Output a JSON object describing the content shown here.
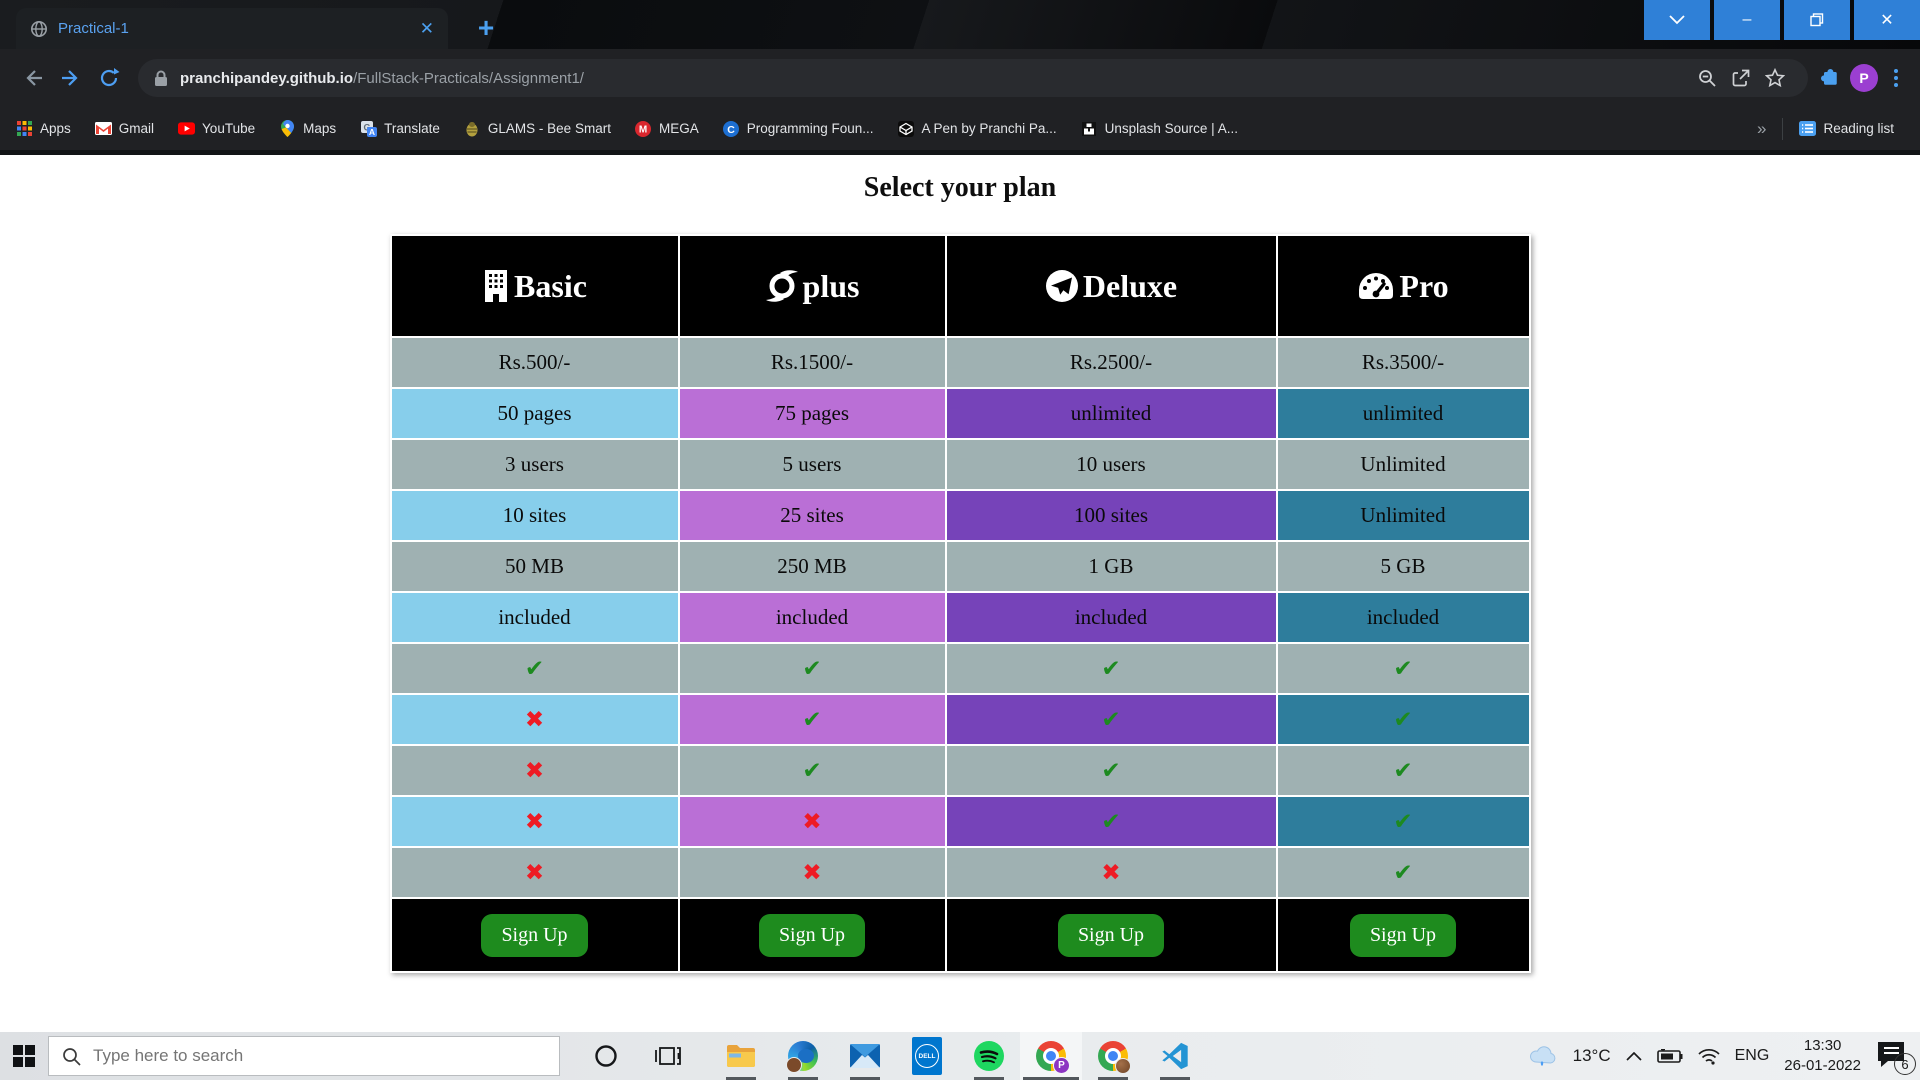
{
  "browser": {
    "tab_title": "Practical-1",
    "icons": {
      "tab_close": "✕",
      "new_tab": "+",
      "overflow": "»",
      "win_minimize": "–",
      "win_close": "✕"
    },
    "url_domain": "pranchipandey.github.io",
    "url_path": "/FullStack-Practicals/Assignment1/",
    "profile_initial": "P",
    "bookmarks": [
      {
        "label": "Apps",
        "icon": "apps-grid-icon"
      },
      {
        "label": "Gmail",
        "icon": "gmail-icon"
      },
      {
        "label": "YouTube",
        "icon": "youtube-icon"
      },
      {
        "label": "Maps",
        "icon": "maps-pin-icon"
      },
      {
        "label": "Translate",
        "icon": "translate-icon"
      },
      {
        "label": "GLAMS - Bee Smart",
        "icon": "bee-icon"
      },
      {
        "label": "MEGA",
        "icon": "mega-icon"
      },
      {
        "label": "Programming Foun...",
        "icon": "c-circle-icon"
      },
      {
        "label": "A Pen by Pranchi Pa...",
        "icon": "codepen-icon"
      },
      {
        "label": "Unsplash Source | A...",
        "icon": "unsplash-icon"
      }
    ],
    "reading_list": "Reading list"
  },
  "page": {
    "title": "Select your plan",
    "table": {
      "plans": [
        {
          "name": "Basic",
          "icon": "building-icon"
        },
        {
          "name": "plus",
          "icon": "swoosh-circle-icon"
        },
        {
          "name": "Deluxe",
          "icon": "telegram-plane-icon"
        },
        {
          "name": "Pro",
          "icon": "tachometer-icon"
        }
      ],
      "accent_colors": [
        "#87CEEB",
        "#BA6FD6",
        "#7643B9",
        "#2E7D9C"
      ],
      "neutral_color": "#9FB1B2",
      "rows": [
        {
          "kind": "text",
          "cells": [
            "Rs.500/-",
            "Rs.1500/-",
            "Rs.2500/-",
            "Rs.3500/-"
          ]
        },
        {
          "kind": "text",
          "cells": [
            "50 pages",
            "75 pages",
            "unlimited",
            "unlimited"
          ]
        },
        {
          "kind": "text",
          "cells": [
            "3 users",
            "5 users",
            "10 users",
            "Unlimited"
          ]
        },
        {
          "kind": "text",
          "cells": [
            "10 sites",
            "25 sites",
            "100 sites",
            "Unlimited"
          ]
        },
        {
          "kind": "text",
          "cells": [
            "50 MB",
            "250 MB",
            "1 GB",
            "5 GB"
          ]
        },
        {
          "kind": "text",
          "cells": [
            "included",
            "included",
            "included",
            "included"
          ]
        },
        {
          "kind": "mark",
          "cells": [
            "yes",
            "yes",
            "yes",
            "yes"
          ]
        },
        {
          "kind": "mark",
          "cells": [
            "no",
            "yes",
            "yes",
            "yes"
          ]
        },
        {
          "kind": "mark",
          "cells": [
            "no",
            "yes",
            "yes",
            "yes"
          ]
        },
        {
          "kind": "mark",
          "cells": [
            "no",
            "no",
            "yes",
            "yes"
          ]
        },
        {
          "kind": "mark",
          "cells": [
            "no",
            "no",
            "no",
            "yes"
          ]
        }
      ],
      "mark_glyphs": {
        "yes": "✔",
        "no": "✖"
      },
      "mark_colors": {
        "yes": "#1d8a20",
        "no": "#ee1b24"
      },
      "cta_label": "Sign Up",
      "cta_color": "#1e8b1e"
    }
  },
  "taskbar": {
    "search_placeholder": "Type here to search",
    "dell_text": "DELL",
    "chrome_badge": "P",
    "weather_temp": "13°C",
    "language": "ENG",
    "time": "13:30",
    "date": "26-01-2022",
    "notification_count": "6"
  }
}
